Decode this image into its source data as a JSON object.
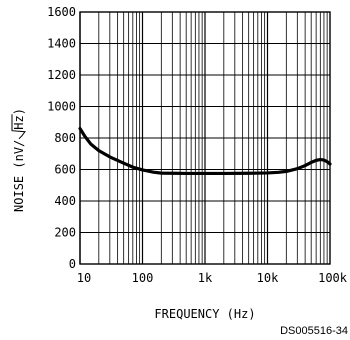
{
  "chart_data": {
    "type": "line",
    "xscale": "log",
    "xlim": [
      10,
      100000
    ],
    "ylim": [
      0,
      1600
    ],
    "grid": true,
    "xticks": [
      10,
      100,
      1000,
      10000,
      100000
    ],
    "xtick_labels": [
      "10",
      "100",
      "1k",
      "10k",
      "100k"
    ],
    "yticks": [
      0,
      200,
      400,
      600,
      800,
      1000,
      1200,
      1400,
      1600
    ],
    "ytick_labels": [
      "0",
      "200",
      "400",
      "600",
      "800",
      "1000",
      "1200",
      "1400",
      "1600"
    ],
    "xlabel": "FREQUENCY (Hz)",
    "ylabel_prefix": "NOISE (nV/",
    "ylabel_radicand": "Hz",
    "ylabel_suffix": ")",
    "series": [
      {
        "color": "#000000",
        "x": [
          10,
          12,
          15,
          20,
          30,
          50,
          70,
          100,
          150,
          200,
          300,
          500,
          1000,
          2000,
          5000,
          10000,
          15000,
          20000,
          30000,
          40000,
          50000,
          60000,
          70000,
          80000,
          90000,
          100000
        ],
        "y": [
          860,
          810,
          760,
          720,
          680,
          640,
          615,
          597,
          583,
          577,
          576,
          575,
          575,
          575,
          576,
          578,
          582,
          588,
          605,
          625,
          645,
          658,
          663,
          660,
          650,
          635
        ]
      }
    ]
  },
  "figure_code": "DS005516-34"
}
